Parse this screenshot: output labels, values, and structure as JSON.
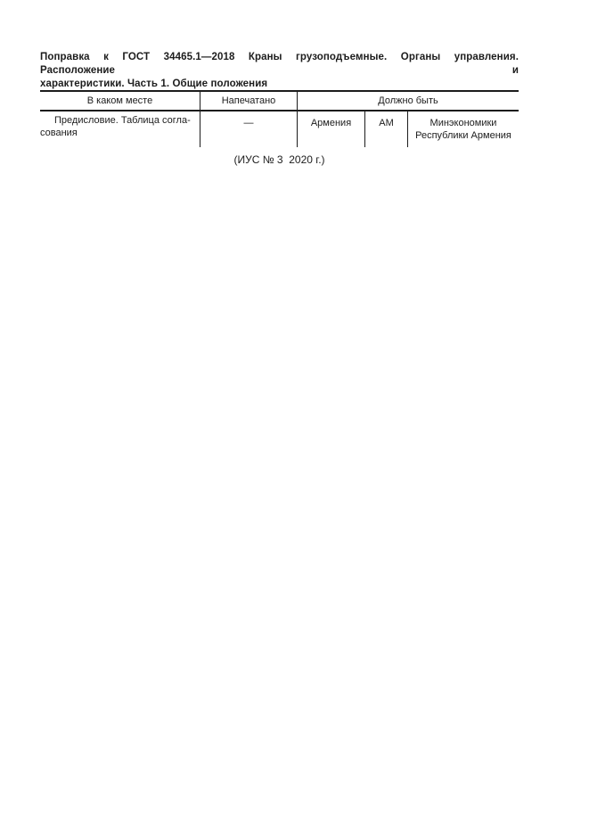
{
  "page": {
    "background": "#ffffff",
    "text_color": "#1c1c1c",
    "line_color": "#1c1c1c"
  },
  "header": {
    "line1": "Поправка к ГОСТ 34465.1—2018 Краны грузоподъемные. Органы управления. Расположение и",
    "line2": "характеристики. Часть 1. Общие положения"
  },
  "table": {
    "columns": [
      {
        "label": "В каком месте"
      },
      {
        "label": "Напечатано"
      },
      {
        "label": "Должно быть"
      }
    ],
    "row": {
      "where_lines": [
        "Предисловие. Таблица согла-",
        "сования"
      ],
      "printed": "—",
      "should_be": {
        "country": "Армения",
        "code": "AM",
        "ministry_lines": [
          "Минэкономики",
          "Республики Армения"
        ]
      }
    }
  },
  "footer": {
    "caption": "(ИУС № 3  2020 г.)"
  }
}
